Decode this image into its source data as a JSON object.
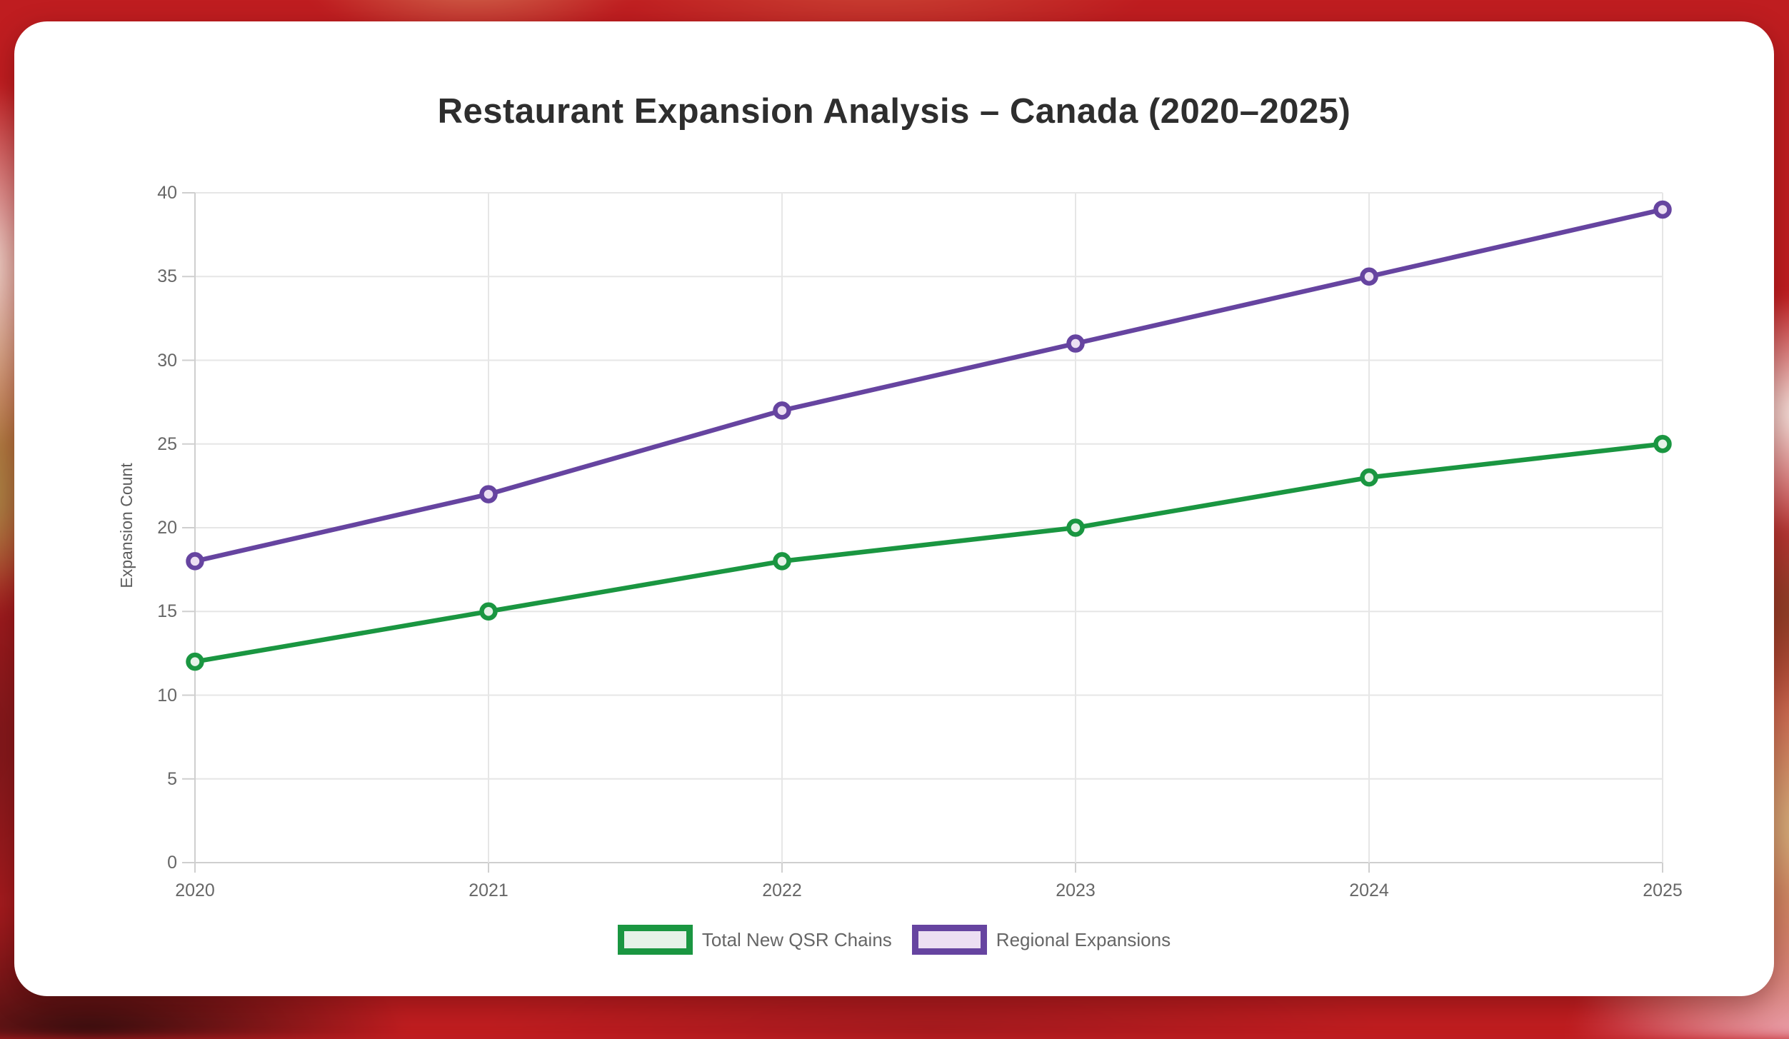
{
  "chart_data": {
    "type": "line",
    "title": "Restaurant Expansion Analysis – Canada (2020–2025)",
    "xlabel": "",
    "ylabel": "Expansion Count",
    "categories": [
      "2020",
      "2021",
      "2022",
      "2023",
      "2024",
      "2025"
    ],
    "series": [
      {
        "name": "Total New QSR Chains",
        "values": [
          12,
          15,
          18,
          20,
          23,
          25
        ],
        "color": "#1A9641",
        "fill": "#E6F2E8"
      },
      {
        "name": "Regional Expansions",
        "values": [
          18,
          22,
          27,
          31,
          35,
          39
        ],
        "color": "#6644A0",
        "fill": "#ECDFF2"
      }
    ],
    "ylim": [
      0,
      40
    ],
    "ytick_step": 5,
    "grid": true,
    "legend_position": "bottom",
    "grid_color": "#E6E6E6",
    "axis_color": "#CFCFCF",
    "tick_text_color": "#676767"
  }
}
